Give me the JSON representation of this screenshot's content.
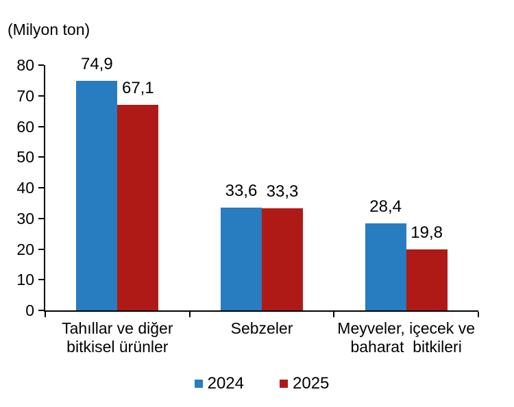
{
  "chart_data": {
    "type": "bar",
    "title": "(Milyon ton)",
    "categories": [
      "Tahıllar ve diğer\nbitkisel ürünler",
      "Sebzeler",
      "Meyveler, içecek ve\nbaharat  bitkileri"
    ],
    "series": [
      {
        "name": "2024",
        "color": "#287CC0",
        "values": [
          74.9,
          33.6,
          28.4
        ]
      },
      {
        "name": "2025",
        "color": "#AF1A17",
        "values": [
          67.1,
          33.3,
          19.8
        ]
      }
    ],
    "value_labels": {
      "2024": [
        "74,9",
        "33,6",
        "28,4"
      ],
      "2025": [
        "67,1",
        "33,3",
        "19,8"
      ]
    },
    "ylim": [
      0,
      80
    ],
    "yticks": [
      0,
      10,
      20,
      30,
      40,
      50,
      60,
      70,
      80
    ],
    "grid": false,
    "legend_position": "bottom",
    "decimal_separator": ",",
    "axis_color": "#000000",
    "text_color": "#000000",
    "background": "#FFFFFF"
  }
}
